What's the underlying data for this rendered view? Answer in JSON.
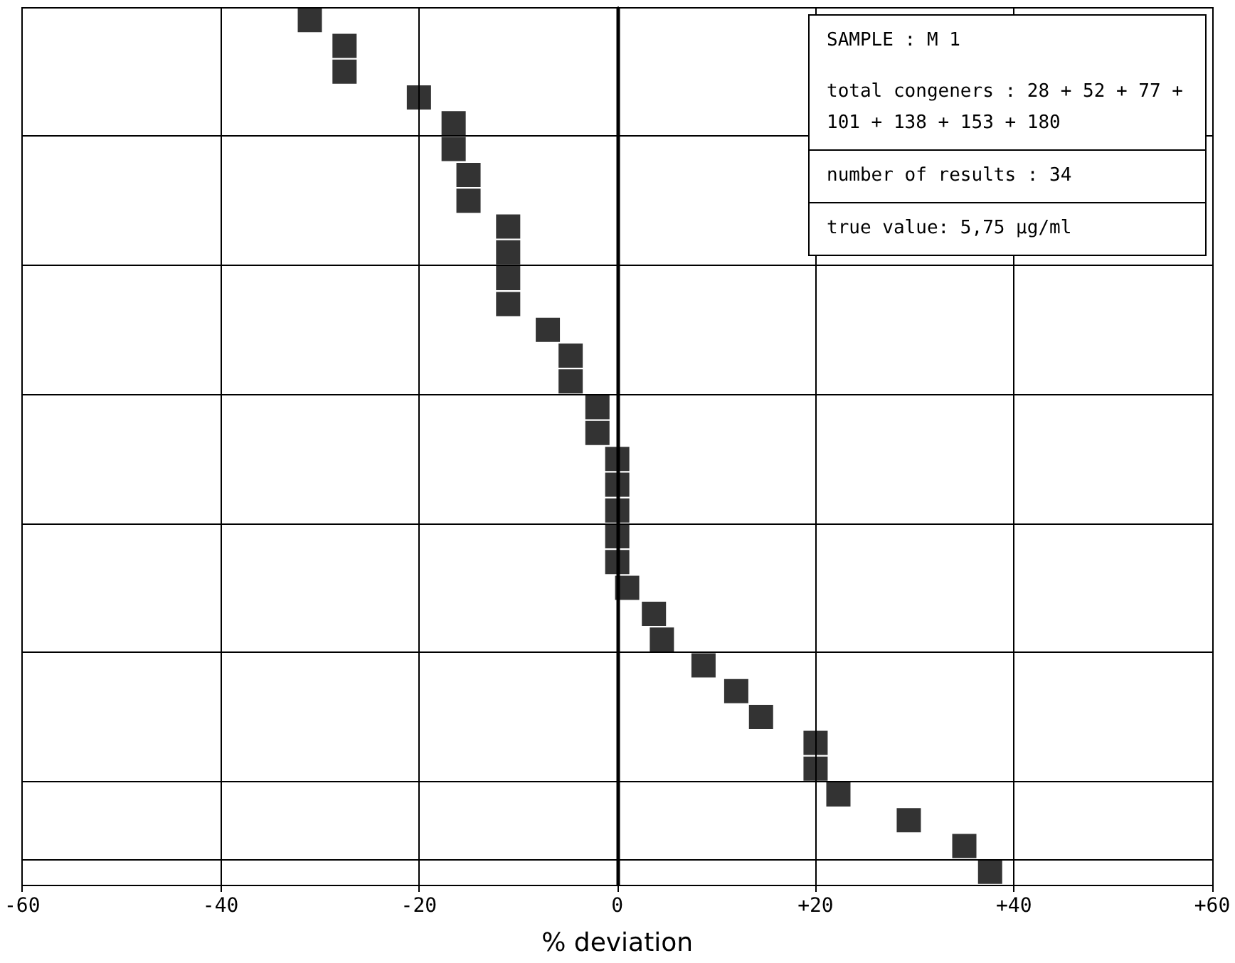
{
  "chart_data": {
    "type": "scatter",
    "orientation": "horizontal",
    "xlabel": "% deviation",
    "categories": [
      null,
      null,
      null,
      null,
      null,
      null,
      null,
      null,
      null,
      null,
      null,
      null,
      null,
      null,
      null,
      null,
      null,
      null,
      null,
      null,
      null,
      null,
      null,
      null,
      null,
      null,
      null,
      null,
      null,
      null,
      null,
      null,
      null,
      null
    ],
    "values": [
      -31,
      -27.5,
      -27.5,
      -20,
      -16.5,
      -16.5,
      -15,
      -15,
      -11,
      -11,
      -11,
      -11,
      -7,
      -4.7,
      -4.7,
      -2,
      -2,
      0,
      0,
      0,
      0,
      0,
      1,
      3.7,
      4.5,
      8.7,
      12,
      14.5,
      20,
      20,
      22.3,
      29.4,
      35,
      37.6
    ],
    "color": "#000000",
    "marker": "square",
    "xlim": [
      -60,
      60
    ],
    "xticks": [
      -60,
      -40,
      -20,
      0,
      {
        "value": 20,
        "label": "+20"
      },
      {
        "value": 40,
        "label": "+40"
      },
      {
        "value": 60,
        "label": "+60"
      }
    ],
    "grid": true,
    "tick_labels": "x",
    "ref_lines": [
      {
        "axis": "x",
        "value": 0
      }
    ],
    "annotations": [
      "SAMPLE : M 1",
      "total congeners : 28 + 52 + 77 + 101 + 138 + 153 + 180",
      "number of results : 34",
      "true value: 5,75 µg/ml"
    ]
  }
}
